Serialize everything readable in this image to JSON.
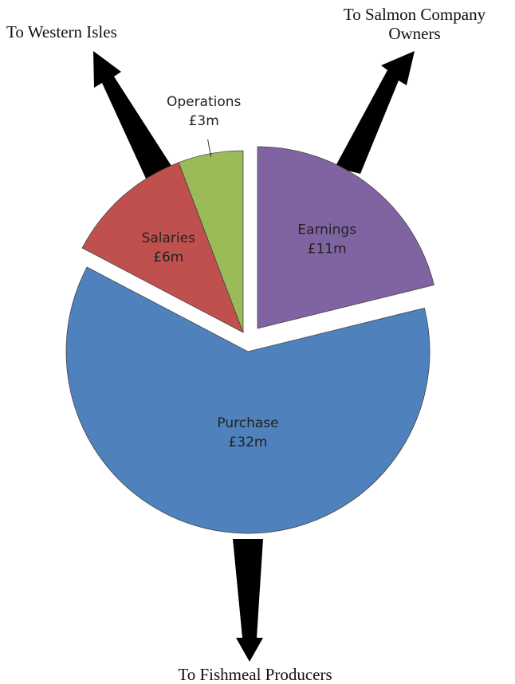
{
  "chart_data": {
    "type": "pie",
    "categories": [
      "Earnings",
      "Purchase",
      "Salaries",
      "Operations"
    ],
    "values": [
      11,
      32,
      6,
      3
    ],
    "value_labels": [
      "£11m",
      "£32m",
      "£6m",
      "£3m"
    ],
    "colors": [
      "#8064a2",
      "#4f81bd",
      "#c0504d",
      "#9bbb59"
    ],
    "annotations": [
      "To Western Isles",
      "To Salmon Company Owners",
      "To Fishmeal Producers"
    ]
  }
}
